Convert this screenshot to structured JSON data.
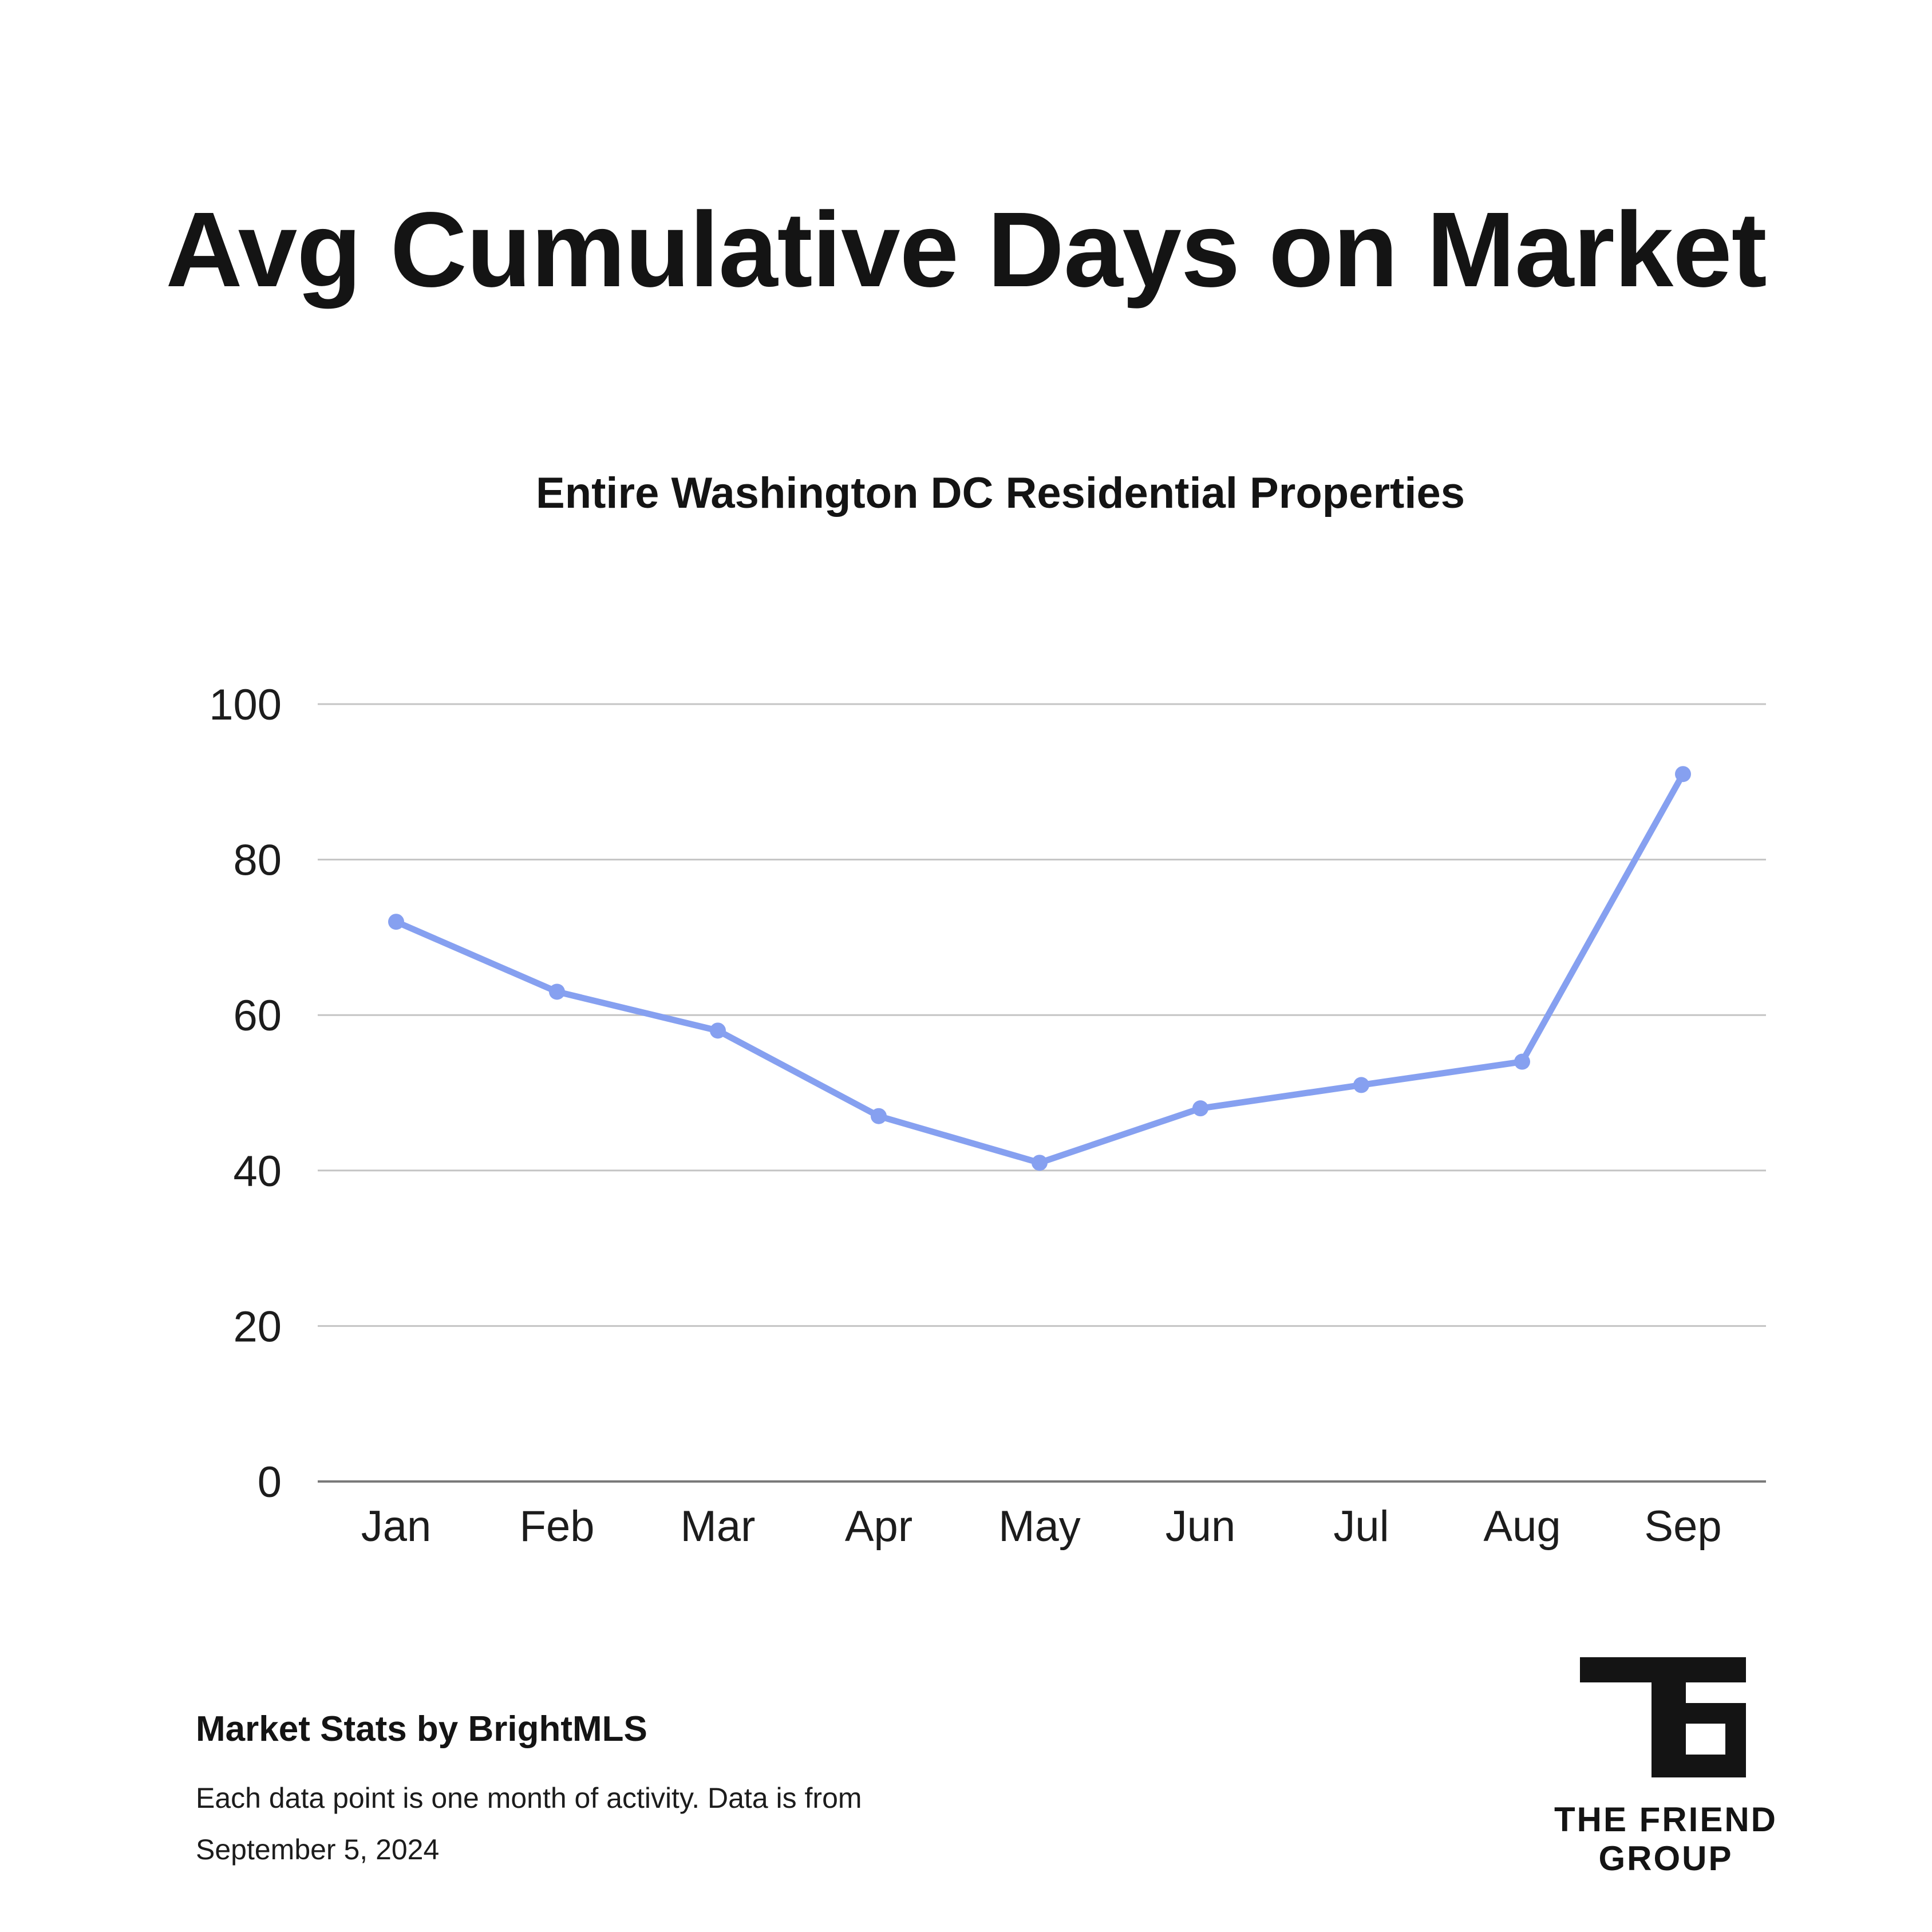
{
  "page": {
    "title": "Avg Cumulative Days on Market",
    "subtitle": "Entire Washington DC Residential Properties"
  },
  "chart_data": {
    "type": "line",
    "title": "Avg Cumulative Days on Market",
    "subtitle": "Entire Washington DC Residential Properties",
    "xlabel": "",
    "ylabel": "",
    "categories": [
      "Jan",
      "Feb",
      "Mar",
      "Apr",
      "May",
      "Jun",
      "Jul",
      "Aug",
      "Sep"
    ],
    "series": [
      {
        "values": [
          72,
          63,
          58,
          47,
          41,
          48,
          51,
          54,
          91
        ],
        "color": "#86a0f0"
      }
    ],
    "ylim": [
      0,
      100
    ],
    "yticks": [
      0,
      20,
      40,
      60,
      80,
      100
    ],
    "grid": true,
    "legend": "none"
  },
  "footer": {
    "source": "Market Stats by BrightMLS",
    "note": "Each data point is one month of activity. Data is from September 5, 2024"
  },
  "logo": {
    "monogram": "TFG",
    "name_line1": "THE FRIEND",
    "name_line2": "GROUP"
  }
}
